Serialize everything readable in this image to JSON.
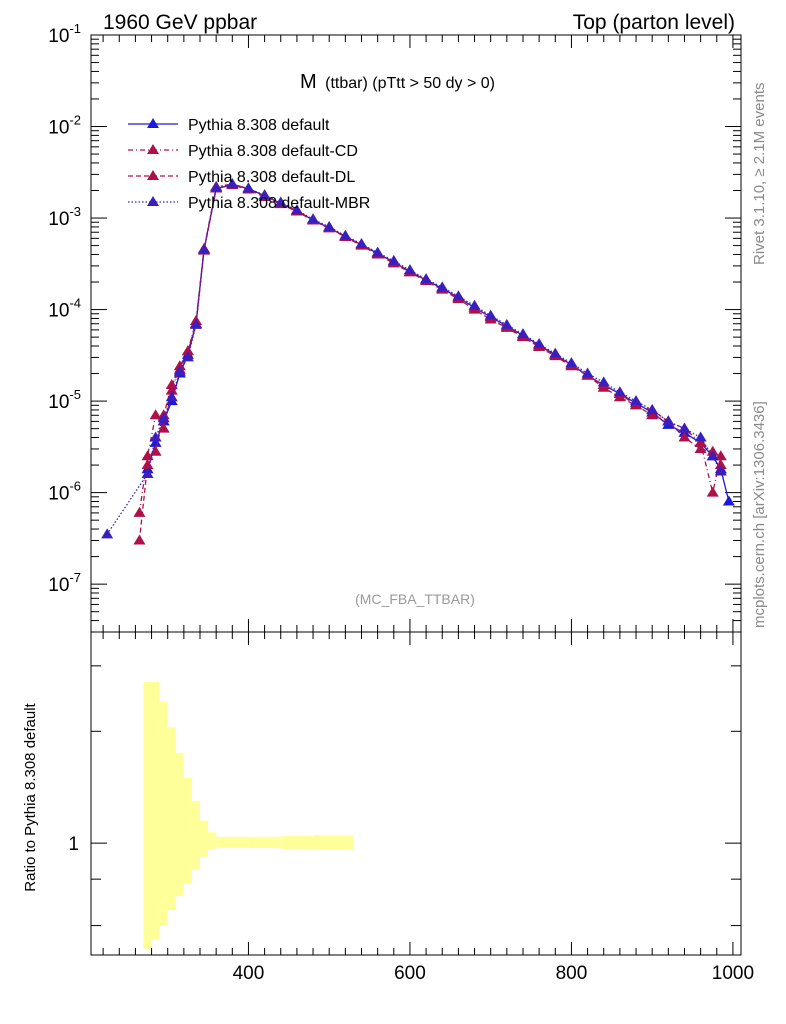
{
  "header": {
    "energy_label": "1960 GeV ppbar",
    "process_label": "Top (parton level)"
  },
  "side_labels": {
    "rivet": "Rivet 3.1.10, ≥ 2.1M events",
    "mcplots": "mcplots.cern.ch [arXiv:1306.3436]"
  },
  "chart_data": [
    {
      "type": "line",
      "title_main": "M",
      "title_sub": "(ttbar) (pTtt > 50 dy > 0)",
      "watermark": "(MC_FBA_TTBAR)",
      "xlabel": "",
      "ylabel": "",
      "xlim": [
        205,
        1010
      ],
      "ylim": [
        3e-08,
        0.1
      ],
      "log_y": true,
      "grid": false,
      "legend_position": "top-left",
      "yticks": [
        "10^-7",
        "10^-6",
        "10^-5",
        "10^-4",
        "10^-3",
        "10^-2",
        "10^-1"
      ],
      "series": [
        {
          "name": "Pythia 8.308 default",
          "color": "#1a1adb",
          "dash": "solid",
          "points": [
            [
              275,
              1.8e-06
            ],
            [
              285,
              3.5e-06
            ],
            [
              295,
              6e-06
            ],
            [
              305,
              1e-05
            ],
            [
              315,
              2e-05
            ],
            [
              325,
              3.2e-05
            ],
            [
              335,
              7e-05
            ],
            [
              345,
              0.00045
            ],
            [
              360,
              0.0021
            ],
            [
              380,
              0.0023
            ],
            [
              400,
              0.0021
            ],
            [
              420,
              0.00175
            ],
            [
              440,
              0.00145
            ],
            [
              460,
              0.0012
            ],
            [
              480,
              0.00095
            ],
            [
              500,
              0.00078
            ],
            [
              520,
              0.00063
            ],
            [
              540,
              0.00051
            ],
            [
              560,
              0.00041
            ],
            [
              580,
              0.00033
            ],
            [
              600,
              0.00026
            ],
            [
              620,
              0.00021
            ],
            [
              640,
              0.00017
            ],
            [
              660,
              0.000135
            ],
            [
              680,
              0.000105
            ],
            [
              700,
              8.3e-05
            ],
            [
              720,
              6.6e-05
            ],
            [
              740,
              5.2e-05
            ],
            [
              760,
              4.1e-05
            ],
            [
              780,
              3.2e-05
            ],
            [
              800,
              2.5e-05
            ],
            [
              820,
              1.9e-05
            ],
            [
              840,
              1.5e-05
            ],
            [
              860,
              1.2e-05
            ],
            [
              880,
              9.5e-06
            ],
            [
              900,
              7.5e-06
            ],
            [
              920,
              5.5e-06
            ],
            [
              940,
              4.5e-06
            ],
            [
              960,
              3.5e-06
            ],
            [
              975,
              2.5e-06
            ],
            [
              985,
              1.8e-06
            ],
            [
              995,
              8e-07
            ]
          ]
        },
        {
          "name": "Pythia 8.308 default-CD",
          "color": "#b0104a",
          "dash": "dashdot",
          "points": [
            [
              265,
              6e-07
            ],
            [
              275,
              2.5e-06
            ],
            [
              285,
              7e-06
            ],
            [
              295,
              5e-06
            ],
            [
              305,
              1.3e-05
            ],
            [
              315,
              2.4e-05
            ],
            [
              325,
              3.5e-05
            ],
            [
              335,
              7.5e-05
            ],
            [
              345,
              0.00046
            ],
            [
              360,
              0.0022
            ],
            [
              380,
              0.00235
            ],
            [
              400,
              0.0021
            ],
            [
              420,
              0.00175
            ],
            [
              440,
              0.00145
            ],
            [
              460,
              0.0012
            ],
            [
              480,
              0.00096
            ],
            [
              500,
              0.00078
            ],
            [
              520,
              0.00063
            ],
            [
              540,
              0.00051
            ],
            [
              560,
              0.00041
            ],
            [
              580,
              0.00033
            ],
            [
              600,
              0.00026
            ],
            [
              620,
              0.00021
            ],
            [
              640,
              0.00017
            ],
            [
              660,
              0.000135
            ],
            [
              680,
              0.000105
            ],
            [
              700,
              8.2e-05
            ],
            [
              720,
              6.5e-05
            ],
            [
              740,
              5.1e-05
            ],
            [
              760,
              4e-05
            ],
            [
              780,
              3.2e-05
            ],
            [
              800,
              2.5e-05
            ],
            [
              820,
              1.9e-05
            ],
            [
              840,
              1.5e-05
            ],
            [
              860,
              1.2e-05
            ],
            [
              880,
              9e-06
            ],
            [
              900,
              8e-06
            ],
            [
              920,
              6e-06
            ],
            [
              940,
              5e-06
            ],
            [
              960,
              3.5e-06
            ],
            [
              975,
              1e-06
            ],
            [
              985,
              2.5e-06
            ]
          ]
        },
        {
          "name": "Pythia 8.308 default-DL",
          "color": "#b0104a",
          "dash": "dashed",
          "points": [
            [
              265,
              3e-07
            ],
            [
              275,
              2e-06
            ],
            [
              285,
              2.8e-06
            ],
            [
              295,
              7e-06
            ],
            [
              305,
              1.5e-05
            ],
            [
              315,
              2.2e-05
            ],
            [
              325,
              3.5e-05
            ],
            [
              335,
              7e-05
            ],
            [
              345,
              0.00044
            ],
            [
              360,
              0.0021
            ],
            [
              380,
              0.0023
            ],
            [
              400,
              0.00205
            ],
            [
              420,
              0.0017
            ],
            [
              440,
              0.00142
            ],
            [
              460,
              0.00118
            ],
            [
              480,
              0.00094
            ],
            [
              500,
              0.00077
            ],
            [
              520,
              0.00062
            ],
            [
              540,
              0.0005
            ],
            [
              560,
              0.0004
            ],
            [
              580,
              0.00032
            ],
            [
              600,
              0.000255
            ],
            [
              620,
              0.000205
            ],
            [
              640,
              0.000165
            ],
            [
              660,
              0.00013
            ],
            [
              680,
              0.0001
            ],
            [
              700,
              7.8e-05
            ],
            [
              720,
              6.3e-05
            ],
            [
              740,
              5e-05
            ],
            [
              760,
              3.9e-05
            ],
            [
              780,
              3.1e-05
            ],
            [
              800,
              2.4e-05
            ],
            [
              820,
              1.9e-05
            ],
            [
              840,
              1.4e-05
            ],
            [
              860,
              1.1e-05
            ],
            [
              880,
              9e-06
            ],
            [
              900,
              7e-06
            ],
            [
              920,
              6e-06
            ],
            [
              940,
              4e-06
            ],
            [
              960,
              3e-06
            ],
            [
              975,
              2.8e-06
            ],
            [
              985,
              2e-06
            ]
          ]
        },
        {
          "name": "Pythia 8.308 default-MBR",
          "color": "#3a1fbf",
          "dash": "dotted",
          "points": [
            [
              225,
              3.5e-07
            ],
            [
              275,
              1.6e-06
            ],
            [
              285,
              4e-06
            ],
            [
              295,
              6.5e-06
            ],
            [
              305,
              1.1e-05
            ],
            [
              315,
              2.1e-05
            ],
            [
              325,
              3e-05
            ],
            [
              335,
              6.8e-05
            ],
            [
              345,
              0.00045
            ],
            [
              360,
              0.00215
            ],
            [
              380,
              0.00235
            ],
            [
              400,
              0.0021
            ],
            [
              420,
              0.00178
            ],
            [
              440,
              0.00148
            ],
            [
              460,
              0.00122
            ],
            [
              480,
              0.00097
            ],
            [
              500,
              0.0008
            ],
            [
              520,
              0.00064
            ],
            [
              540,
              0.00052
            ],
            [
              560,
              0.00042
            ],
            [
              580,
              0.00034
            ],
            [
              600,
              0.00027
            ],
            [
              620,
              0.000215
            ],
            [
              640,
              0.000175
            ],
            [
              660,
              0.00014
            ],
            [
              680,
              0.00011
            ],
            [
              700,
              8.6e-05
            ],
            [
              720,
              6.8e-05
            ],
            [
              740,
              5.4e-05
            ],
            [
              760,
              4.2e-05
            ],
            [
              780,
              3.3e-05
            ],
            [
              800,
              2.6e-05
            ],
            [
              820,
              2e-05
            ],
            [
              840,
              1.6e-05
            ],
            [
              860,
              1.25e-05
            ],
            [
              880,
              1e-05
            ],
            [
              900,
              8e-06
            ],
            [
              920,
              6e-06
            ],
            [
              940,
              5e-06
            ],
            [
              960,
              4e-06
            ],
            [
              975,
              2.5e-06
            ],
            [
              985,
              1.7e-06
            ]
          ]
        }
      ]
    },
    {
      "type": "area",
      "ylabel": "Ratio to Pythia 8.308 default",
      "xlim": [
        205,
        1010
      ],
      "log_y": true,
      "yticks": [
        "1"
      ],
      "xticks": [
        400,
        600,
        800,
        1000
      ],
      "band_color": "#ffff99",
      "band": [
        [
          270,
          280,
          0.52,
          3.4
        ],
        [
          280,
          290,
          0.55,
          2.8
        ],
        [
          290,
          300,
          0.6,
          2.4
        ],
        [
          300,
          310,
          0.66,
          2.05
        ],
        [
          310,
          320,
          0.72,
          1.75
        ],
        [
          320,
          330,
          0.78,
          1.5
        ],
        [
          330,
          340,
          0.85,
          1.3
        ],
        [
          340,
          350,
          0.92,
          1.15
        ],
        [
          350,
          360,
          0.96,
          1.07
        ],
        [
          360,
          400,
          0.975,
          1.04
        ],
        [
          400,
          440,
          0.97,
          1.04
        ],
        [
          440,
          480,
          0.965,
          1.045
        ],
        [
          480,
          530,
          0.96,
          1.05
        ]
      ]
    }
  ]
}
